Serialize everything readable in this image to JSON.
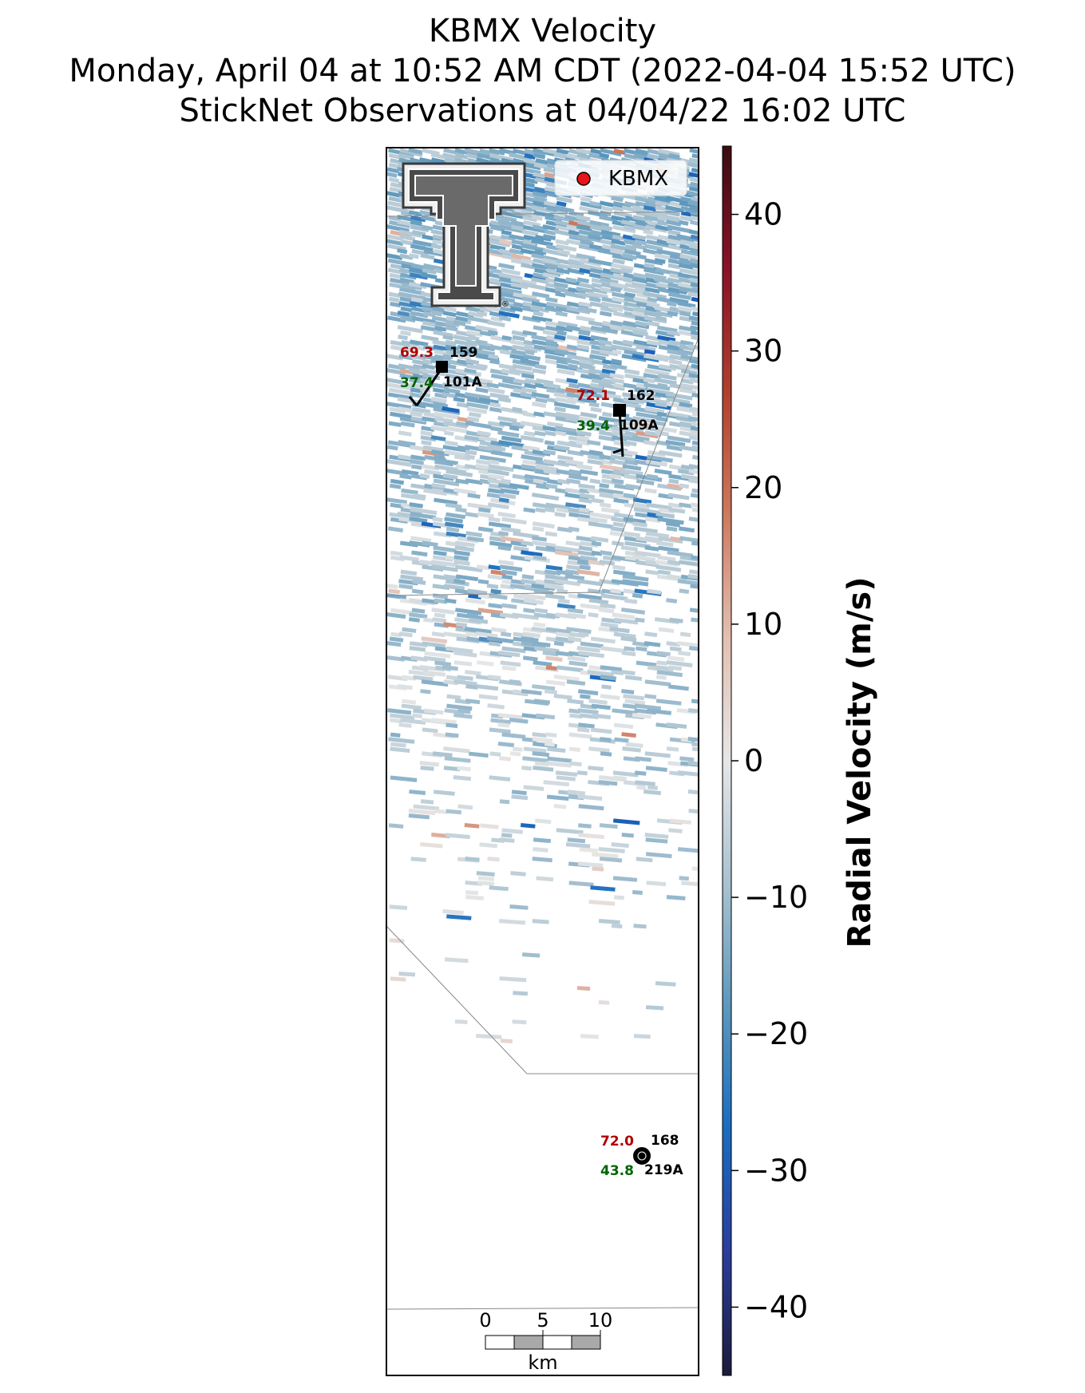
{
  "title": {
    "line1": "KBMX Velocity",
    "line2": "Monday, April 04 at 10:52 AM CDT (2022-04-04 15:52 UTC)",
    "line3": "StickNet Observations at 04/04/22 16:02 UTC"
  },
  "legend": {
    "label": "KBMX",
    "marker_color": "#e8141a"
  },
  "stations": [
    {
      "id": "101A",
      "temperature": "69.3",
      "dewpoint": "37.4",
      "pressure": "159",
      "marker": "square",
      "temp_color": "#b00000",
      "dew_color": "#006400"
    },
    {
      "id": "109A",
      "temperature": "72.1",
      "dewpoint": "39.4",
      "pressure": "162",
      "marker": "square",
      "temp_color": "#b00000",
      "dew_color": "#006400"
    },
    {
      "id": "219A",
      "temperature": "72.0",
      "dewpoint": "43.8",
      "pressure": "168",
      "marker": "calm-circle",
      "temp_color": "#b00000",
      "dew_color": "#006400"
    }
  ],
  "scale_bar": {
    "labels": [
      "0",
      "5",
      "10"
    ],
    "unit": "km"
  },
  "colorbar": {
    "label": "Radial Velocity (m/s)",
    "ticks": [
      "40",
      "30",
      "20",
      "10",
      "0",
      "−10",
      "−20",
      "−30",
      "−40"
    ],
    "range": [
      -45,
      45
    ],
    "colormap": [
      "#1c1b3b",
      "#2a3d9b",
      "#1a6cc0",
      "#5d98bd",
      "#a8c2d1",
      "#e6e6e6",
      "#e3bfb2",
      "#cd7a5e",
      "#b1402d",
      "#8a1228",
      "#3a0d12"
    ]
  },
  "logo": {
    "name": "texas-tech-double-t",
    "mark": "®"
  },
  "velocity_field": {
    "dominant_range_ms": [
      -22,
      -2
    ],
    "sparse_toward_bottom": true
  }
}
